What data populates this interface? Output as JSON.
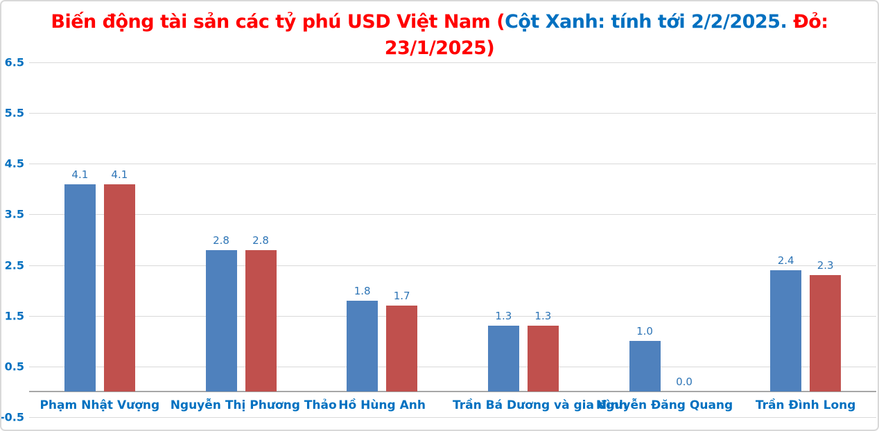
{
  "title": {
    "full_text": "Biến động tài sản các tỷ phú USD Việt Nam (Cột Xanh: tính tới 2/2/2025. Đỏ: 23/1/2025)",
    "lines": [
      {
        "segments": [
          {
            "text": "Biến động tài sản các tỷ phú USD Việt Nam (",
            "color": "#FF0000"
          },
          {
            "text": "Cột Xanh: tính tới 2/2/2025.",
            "color": "#0070C0"
          },
          {
            "text": " Đỏ:",
            "color": "#FF0000"
          }
        ]
      },
      {
        "segments": [
          {
            "text": "23/1/2025)",
            "color": "#FF0000"
          }
        ]
      }
    ]
  },
  "chart_data": {
    "type": "bar",
    "categories": [
      "Phạm Nhật Vượng",
      "Nguyễn Thị Phương Thảo",
      "Hồ Hùng Anh",
      "Trần Bá Dương và gia đình",
      "Nguyễn Đăng Quang",
      "Trần Đình Long"
    ],
    "series": [
      {
        "name": "Cột Xanh: tính tới 2/2/2025",
        "color": "#4F81BD",
        "values": [
          4.1,
          2.8,
          1.8,
          1.3,
          1.0,
          2.4
        ]
      },
      {
        "name": "Đỏ: 23/1/2025",
        "color": "#C0504D",
        "values": [
          4.1,
          2.8,
          1.7,
          1.3,
          0.0,
          2.3
        ]
      }
    ],
    "value_labels": [
      [
        "4.1",
        "4.1"
      ],
      [
        "2.8",
        "2.8"
      ],
      [
        "1.8",
        "1.7"
      ],
      [
        "1.3",
        "1.3"
      ],
      [
        "1.0",
        "0.0"
      ],
      [
        "2.4",
        "2.3"
      ]
    ],
    "ylim": [
      -0.5,
      6.5
    ],
    "yticks": [
      6.5,
      5.5,
      4.5,
      3.5,
      2.5,
      1.5,
      0.5,
      -0.5
    ],
    "baseline": 0,
    "grid": true,
    "legend_position": "none",
    "value_label_decimals": 1
  },
  "style": {
    "title_red": "#FF0000",
    "title_blue": "#0070C0",
    "axis_label_color": "#0070C0",
    "category_label_color": "#0070C0",
    "value_label_color": "#2E75B6",
    "gridline_color": "#D9D9D9",
    "axis_line_color": "#A6A6A6",
    "bar_blue": "#4F81BD",
    "bar_red": "#C0504D"
  }
}
